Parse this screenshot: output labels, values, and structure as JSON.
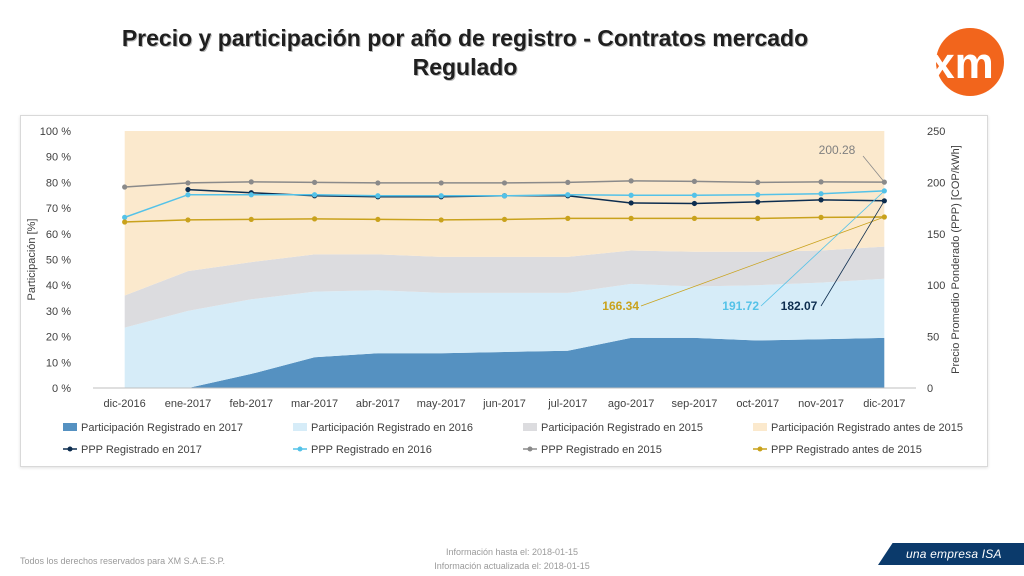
{
  "page": {
    "title_line1": "Precio y participación por año de registro - Contratos mercado",
    "title_line2": "Regulado",
    "footer_rights": "Todos los derechos reservados para XM S.A.E.S.P.",
    "footer_info_date": "Información hasta el: 2018-01-15",
    "footer_update_date": "Información actualizada el: 2018-01-15",
    "brand_text": "una empresa ISA",
    "logo_text": "xm"
  },
  "colors": {
    "area_2017": "#5591c1",
    "area_2016": "#d6ecf8",
    "area_2015": "#dcdcdf",
    "area_before": "#fbe9cd",
    "line_2017": "#0d2d4f",
    "line_2016": "#54c2e8",
    "line_2015": "#8a8a8a",
    "line_before": "#c9a21c",
    "logo": "#f2651c"
  },
  "chart_data": {
    "type": "area",
    "categories": [
      "dic-2016",
      "ene-2017",
      "feb-2017",
      "mar-2017",
      "abr-2017",
      "may-2017",
      "jun-2017",
      "jul-2017",
      "ago-2017",
      "sep-2017",
      "oct-2017",
      "nov-2017",
      "dic-2017"
    ],
    "y_left": {
      "label": "Participación [%]",
      "range": [
        0,
        100
      ],
      "ticks": [
        "0 %",
        "10 %",
        "20 %",
        "30 %",
        "40 %",
        "50 %",
        "60 %",
        "70 %",
        "80 %",
        "90 %",
        "100 %"
      ]
    },
    "y_right": {
      "label": "Precio Promedio Ponderado (PPP) [COP/kWh]",
      "range": [
        0,
        250
      ],
      "ticks": [
        "0",
        "50",
        "100",
        "150",
        "200",
        "250"
      ]
    },
    "area_series": [
      {
        "name": "Participación Registrado en  2017",
        "values": [
          0,
          0,
          5.5,
          12,
          13.5,
          13.5,
          14,
          14.5,
          19.5,
          19.5,
          18.5,
          19,
          19.5
        ]
      },
      {
        "name": "Participación Registrado en  2016",
        "values": [
          23.5,
          30,
          29,
          25.5,
          24.5,
          23.5,
          23,
          22.5,
          21,
          20,
          21.5,
          22,
          23
        ]
      },
      {
        "name": "Participación Registrado en  2015",
        "values": [
          12.5,
          15.5,
          14.5,
          14.5,
          14,
          14,
          14,
          14,
          13,
          13.5,
          13,
          12.5,
          12.5
        ]
      },
      {
        "name": "Participación Registrado antes de  2015",
        "values": [
          64,
          54.5,
          51,
          48,
          48,
          49,
          49,
          49,
          46.5,
          47,
          47,
          46.5,
          45
        ]
      }
    ],
    "line_series": [
      {
        "name": "PPP Registrado en  2017",
        "values": [
          null,
          193,
          190,
          187,
          186,
          186,
          187,
          187,
          180,
          179.5,
          181,
          183,
          182.07
        ]
      },
      {
        "name": "PPP Registrado en  2016",
        "values": [
          166,
          188,
          188,
          188,
          187,
          187,
          187,
          188,
          187.5,
          187.5,
          188,
          189,
          191.72
        ]
      },
      {
        "name": "PPP Registrado en  2015",
        "values": [
          195.5,
          199.5,
          200.5,
          200,
          199.5,
          199.5,
          199.5,
          200,
          201.5,
          201,
          200,
          200.5,
          200.28
        ]
      },
      {
        "name": "PPP Registrado antes de  2015",
        "values": [
          161.5,
          163.5,
          164,
          164.5,
          164,
          163.5,
          164,
          165,
          165,
          165,
          165,
          166,
          166.34
        ]
      }
    ],
    "annotations": [
      {
        "label": "200.28",
        "series": "PPP Registrado en  2015"
      },
      {
        "label": "166.34",
        "series": "PPP Registrado antes de  2015"
      },
      {
        "label": "191.72",
        "series": "PPP Registrado en  2016"
      },
      {
        "label": "182.07",
        "series": "PPP Registrado en  2017"
      }
    ]
  }
}
